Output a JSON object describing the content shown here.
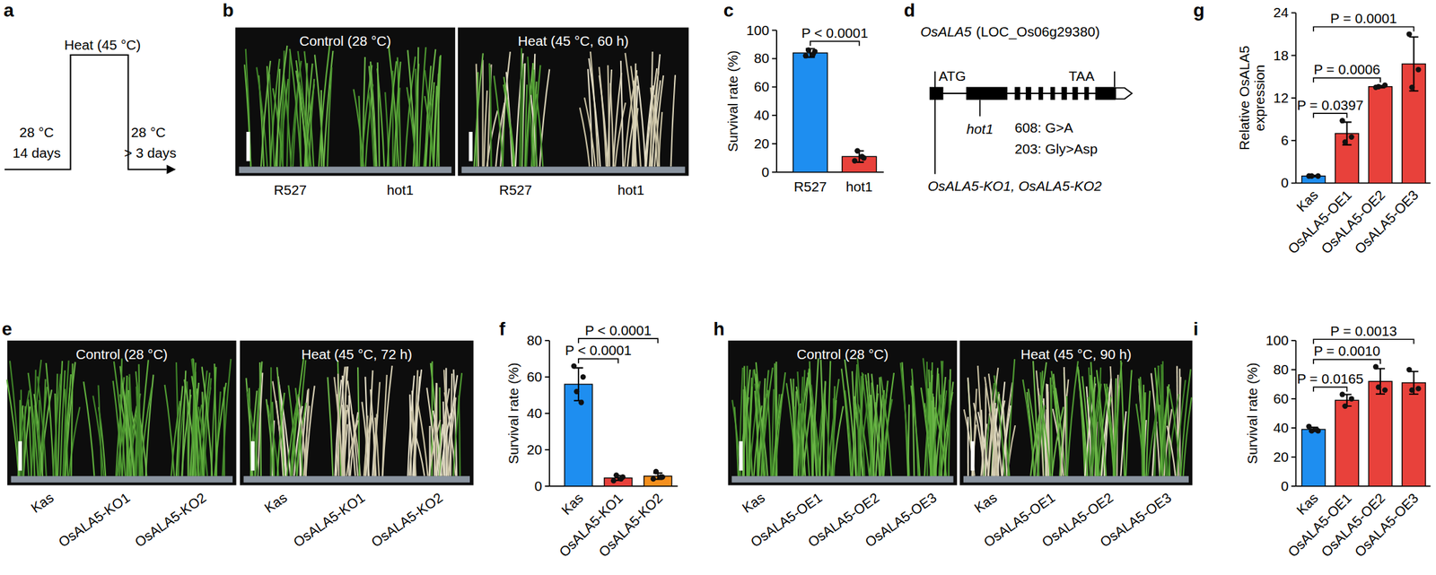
{
  "diagram_a": {
    "panel": "a",
    "heat_label": "Heat (45 °C)",
    "before_temp": "28 °C",
    "before_duration": "14 days",
    "after_temp": "28 °C",
    "after_duration": "> 3 days"
  },
  "photos": [
    {
      "panel": "b",
      "images": [
        {
          "title": "Control (28 °C)",
          "labels": [
            "R527",
            "hot1"
          ]
        },
        {
          "title": "Heat (45 °C, 60 h)",
          "labels": [
            "R527",
            "hot1"
          ]
        }
      ]
    },
    {
      "panel": "e",
      "images": [
        {
          "title": "Control (28 °C)",
          "labels": [
            "Kas",
            "OsALA5-KO1",
            "OsALA5-KO2"
          ]
        },
        {
          "title": "Heat (45 °C, 72 h)",
          "labels": [
            "Kas",
            "OsALA5-KO1",
            "OsALA5-KO2"
          ]
        }
      ]
    },
    {
      "panel": "h",
      "images": [
        {
          "title": "Control (28 °C)",
          "labels": [
            "Kas",
            "OsALA5-OE1",
            "OsALA5-OE2",
            "OsALA5-OE3"
          ]
        },
        {
          "title": "Heat (45 °C, 90 h)",
          "labels": [
            "Kas",
            "OsALA5-OE1",
            "OsALA5-OE2",
            "OsALA5-OE3"
          ]
        }
      ]
    }
  ],
  "gene_d": {
    "panel": "d",
    "gene": "OsALA5",
    "locus": "(LOC_Os06g29380)",
    "start_codon": "ATG",
    "stop_codon": "TAA",
    "mutant": "hot1",
    "mutation_nt": "608: G>A",
    "mutation_aa": "203: Gly>Asp",
    "knockouts": "OsALA5-KO1, OsALA5-KO2"
  },
  "chart_data": [
    {
      "panel": "c",
      "type": "bar",
      "ylabel": "Survival rate (%)",
      "categories": [
        "R527",
        "hot1"
      ],
      "values": [
        84,
        11
      ],
      "errors": [
        3,
        4
      ],
      "points": [
        [
          82,
          85,
          86,
          83
        ],
        [
          8,
          10,
          15,
          11
        ]
      ],
      "colors": [
        "#1e8ef0",
        "#e8413b"
      ],
      "ylim": [
        0,
        100
      ],
      "yticks": [
        0,
        20,
        40,
        60,
        80,
        100
      ],
      "grid": false,
      "annotations": [
        {
          "text": "P < 0.0001",
          "from": 0,
          "to": 1
        }
      ]
    },
    {
      "panel": "f",
      "type": "bar",
      "ylabel": "Survival rate (%)",
      "categories": [
        "Kas",
        "OsALA5-KO1",
        "OsALA5-KO2"
      ],
      "values": [
        56,
        4.5,
        5.5
      ],
      "errors": [
        9,
        1.3,
        1.7
      ],
      "points": [
        [
          66,
          60,
          52,
          46
        ],
        [
          3,
          5,
          6,
          4
        ],
        [
          4,
          5,
          8,
          5
        ]
      ],
      "colors": [
        "#1e8ef0",
        "#e8413b",
        "#f5901e"
      ],
      "ylim": [
        0,
        80
      ],
      "yticks": [
        0,
        20,
        40,
        60,
        80
      ],
      "grid": false,
      "annotations": [
        {
          "text": "P < 0.0001",
          "from": 0,
          "to": 1
        },
        {
          "text": "P < 0.0001",
          "from": 0,
          "to": 2
        }
      ]
    },
    {
      "panel": "g",
      "type": "bar",
      "ylabel": "Relative OsALA5 expression",
      "categories": [
        "Kas",
        "OsALA5-OE1",
        "OsALA5-OE2",
        "OsALA5-OE3"
      ],
      "values": [
        1,
        7,
        13.6,
        16.8
      ],
      "errors": [
        0.1,
        1.6,
        0.15,
        3.8
      ],
      "points": [
        [
          1,
          1,
          1
        ],
        [
          8.8,
          6.5,
          5.8
        ],
        [
          13.5,
          13.8,
          13.6
        ],
        [
          21,
          16,
          13.5
        ]
      ],
      "colors": [
        "#1e8ef0",
        "#e8413b",
        "#e8413b",
        "#e8413b"
      ],
      "ylim": [
        0,
        24
      ],
      "yticks": [
        0,
        6,
        12,
        18,
        24
      ],
      "grid": false,
      "annotations": [
        {
          "text": "P = 0.0397",
          "from": 0,
          "to": 1
        },
        {
          "text": "P = 0.0006",
          "from": 0,
          "to": 2
        },
        {
          "text": "P = 0.0001",
          "from": 0,
          "to": 3
        }
      ]
    },
    {
      "panel": "i",
      "type": "bar",
      "ylabel": "Survival rate (%)",
      "categories": [
        "Kas",
        "OsALA5-OE1",
        "OsALA5-OE2",
        "OsALA5-OE3"
      ],
      "values": [
        39,
        59,
        72,
        71
      ],
      "errors": [
        1.4,
        4,
        8.7,
        7.8
      ],
      "points": [
        [
          41,
          38,
          38,
          39
        ],
        [
          63,
          60,
          55
        ],
        [
          82,
          66,
          68
        ],
        [
          80,
          67,
          66
        ]
      ],
      "colors": [
        "#1e8ef0",
        "#e8413b",
        "#e8413b",
        "#e8413b"
      ],
      "ylim": [
        0,
        100
      ],
      "yticks": [
        0,
        20,
        40,
        60,
        80,
        100
      ],
      "grid": false,
      "annotations": [
        {
          "text": "P = 0.0165",
          "from": 0,
          "to": 1
        },
        {
          "text": "P = 0.0010",
          "from": 0,
          "to": 2
        },
        {
          "text": "P = 0.0013",
          "from": 0,
          "to": 3
        }
      ]
    }
  ]
}
